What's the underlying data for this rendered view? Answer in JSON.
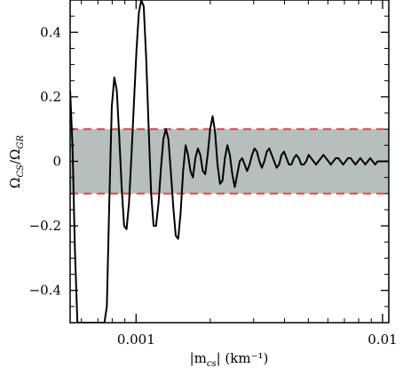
{
  "chart_data": {
    "type": "line",
    "title": "",
    "xlabel_parts": {
      "prefix": "|m",
      "sub": "cs",
      "suffix": "| (km⁻¹)"
    },
    "ylabel_parts": {
      "a": "Ω",
      "a_sub": "CS",
      "slash": "/Ω",
      "b_sub": "GR"
    },
    "xscale": "log",
    "xlim": [
      0.00054,
      0.0106
    ],
    "ylim": [
      -0.5,
      0.5
    ],
    "x_ticks": [
      {
        "value": 0.001,
        "label": "0.001"
      },
      {
        "value": 0.01,
        "label": "0.01"
      }
    ],
    "y_ticks": [
      {
        "value": -0.4,
        "label": "−0.4"
      },
      {
        "value": -0.2,
        "label": "−0.2"
      },
      {
        "value": 0,
        "label": "0"
      },
      {
        "value": 0.2,
        "label": "0.2"
      },
      {
        "value": 0.4,
        "label": "0.4"
      }
    ],
    "band": {
      "y_min": -0.1,
      "y_max": 0.1,
      "fill": "#b7bfbd",
      "border_color": "#e8453c",
      "border_style": "dashed"
    },
    "grid": false,
    "line_color": "#000000",
    "series": [
      {
        "x": [
          0.00054,
          0.000552,
          0.000565,
          0.000578,
          0.000591,
          0.000605,
          0.00062,
          0.000634,
          0.000649,
          0.000664,
          0.000679,
          0.000695,
          0.000711,
          0.000727,
          0.000744,
          0.000761,
          0.000779,
          0.000797,
          0.000816,
          0.000835,
          0.000854,
          0.000874,
          0.000894,
          0.000915,
          0.000936,
          0.000958,
          0.00098,
          0.001003,
          0.001026,
          0.00105,
          0.001074,
          0.001099,
          0.001125,
          0.001151,
          0.001178,
          0.001205,
          0.001233,
          0.001262,
          0.001291,
          0.001321,
          0.001352,
          0.001383,
          0.001415,
          0.001448,
          0.001482,
          0.001516,
          0.001552,
          0.001588,
          0.001625,
          0.001662,
          0.001701,
          0.00174,
          0.001781,
          0.001822,
          0.001865,
          0.001908,
          0.001952,
          0.001998,
          0.002044,
          0.002092,
          0.00214,
          0.00219,
          0.002241,
          0.002293,
          0.002347,
          0.002401,
          0.002457,
          0.002514,
          0.002573,
          0.002633,
          0.002694,
          0.002757,
          0.002821,
          0.002887,
          0.002954,
          0.003022,
          0.003093,
          0.003165,
          0.003238,
          0.003314,
          0.003391,
          0.00347,
          0.003551,
          0.003633,
          0.003718,
          0.003804,
          0.003893,
          0.003984,
          0.004076,
          0.004171,
          0.004268,
          0.004368,
          0.004469,
          0.004573,
          0.00468,
          0.004789,
          0.0049,
          0.005014,
          0.005131,
          0.00525,
          0.005373,
          0.005498,
          0.005626,
          0.005757,
          0.005891,
          0.006028,
          0.006168,
          0.006312,
          0.006459,
          0.006609,
          0.006763,
          0.00692,
          0.007081,
          0.007246,
          0.007415,
          0.007587,
          0.007764,
          0.007945,
          0.00813,
          0.008319,
          0.008513,
          0.008711,
          0.008913,
          0.009121,
          0.009333,
          0.00955,
          0.009773,
          0.01,
          0.0106
        ],
        "y": [
          0.22,
          0.05,
          -0.28,
          -0.5,
          -0.5,
          -0.5,
          -0.5,
          -0.5,
          -0.5,
          -0.5,
          -0.5,
          -0.5,
          -0.5,
          -0.5,
          -0.5,
          -0.45,
          -0.12,
          0.17,
          0.26,
          0.22,
          0.08,
          -0.08,
          -0.2,
          -0.21,
          -0.13,
          0.02,
          0.18,
          0.34,
          0.46,
          0.5,
          0.48,
          0.32,
          0.1,
          -0.1,
          -0.2,
          -0.2,
          -0.13,
          -0.02,
          0.07,
          0.1,
          0.07,
          -0.03,
          -0.14,
          -0.23,
          -0.24,
          -0.16,
          -0.03,
          0.05,
          0.02,
          -0.03,
          -0.05,
          0.01,
          0.04,
          0.02,
          -0.03,
          -0.04,
          0.02,
          0.1,
          0.14,
          0.09,
          -0.01,
          -0.07,
          -0.06,
          0.01,
          0.05,
          0.02,
          -0.04,
          -0.08,
          -0.04,
          0.0,
          0.01,
          -0.01,
          -0.03,
          -0.01,
          0.02,
          0.04,
          0.03,
          0.0,
          -0.02,
          0.0,
          0.03,
          0.04,
          0.02,
          0.0,
          -0.02,
          -0.01,
          0.02,
          0.03,
          0.01,
          -0.01,
          -0.01,
          0.01,
          0.02,
          0.01,
          -0.01,
          -0.01,
          0.0,
          0.02,
          0.01,
          0.0,
          -0.01,
          0.0,
          0.01,
          0.02,
          0.01,
          0.0,
          -0.01,
          0.0,
          0.01,
          0.01,
          0.0,
          -0.01,
          0.0,
          0.01,
          0.01,
          0.0,
          -0.01,
          0.0,
          0.01,
          0.0,
          -0.01,
          0.0,
          0.01,
          0.0,
          -0.01,
          0.0,
          0.0,
          0.0,
          0.0
        ]
      }
    ]
  }
}
